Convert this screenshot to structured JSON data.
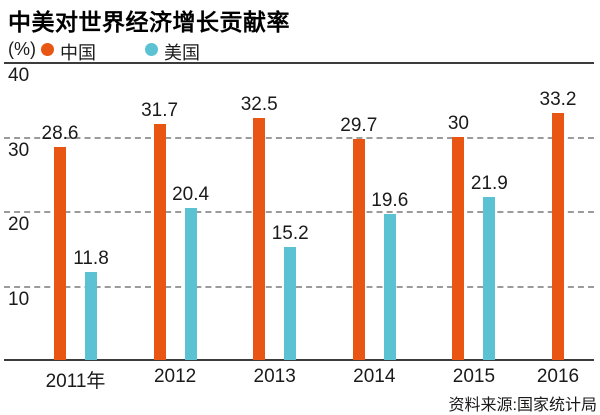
{
  "header": {
    "title": "中美对世界经济增长贡献率"
  },
  "legend": {
    "unit": "(%)",
    "items": [
      {
        "label": "中国",
        "color": "#e95513"
      },
      {
        "label": "美国",
        "color": "#5bc2d4"
      }
    ]
  },
  "source_note": "资料来源:国家统计局",
  "chart_data": {
    "type": "bar",
    "title": "中美对世界经济增长贡献率",
    "unit_label": "(%)",
    "categories": [
      "2011年",
      "2012",
      "2013",
      "2014",
      "2015",
      "2016"
    ],
    "series": [
      {
        "name": "中国",
        "color": "#e95513",
        "values": [
          28.6,
          31.7,
          32.5,
          29.7,
          30,
          33.2
        ]
      },
      {
        "name": "美国",
        "color": "#5bc2d4",
        "values": [
          11.8,
          20.4,
          15.2,
          19.6,
          21.9,
          null
        ]
      }
    ],
    "ylim": [
      0,
      40
    ],
    "yticks": [
      40,
      30,
      20,
      10
    ],
    "grid": "horizontal-dashed",
    "top_axis_value": 40,
    "legend_position": "top-left",
    "value_labels": "above-bars",
    "source": "资料来源:国家统计局"
  }
}
